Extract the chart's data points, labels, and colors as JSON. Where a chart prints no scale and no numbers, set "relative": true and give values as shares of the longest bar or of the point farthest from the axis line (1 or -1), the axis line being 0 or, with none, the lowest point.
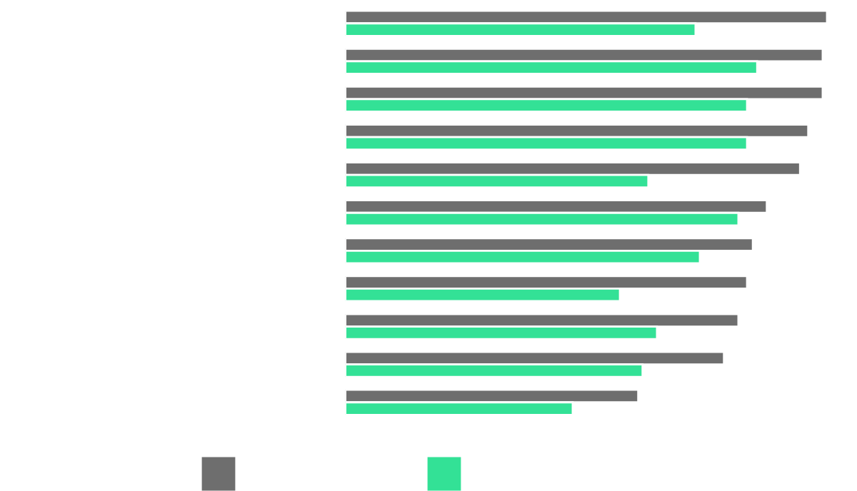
{
  "chart_data": {
    "type": "bar",
    "orientation": "horizontal",
    "relative": true,
    "categories": [
      null,
      null,
      null,
      null,
      null,
      null,
      null,
      null,
      null,
      null,
      null
    ],
    "series": [
      {
        "color": "#6e6e6e",
        "values": [
          1,
          0.991,
          0.991,
          0.961,
          0.944,
          0.875,
          0.846,
          0.834,
          0.816,
          0.786,
          0.608
        ]
      },
      {
        "color": "#33e196",
        "values": [
          0.727,
          0.855,
          0.834,
          0.834,
          0.629,
          0.816,
          0.736,
          0.57,
          0.647,
          0.617,
          0.472
        ]
      }
    ]
  }
}
